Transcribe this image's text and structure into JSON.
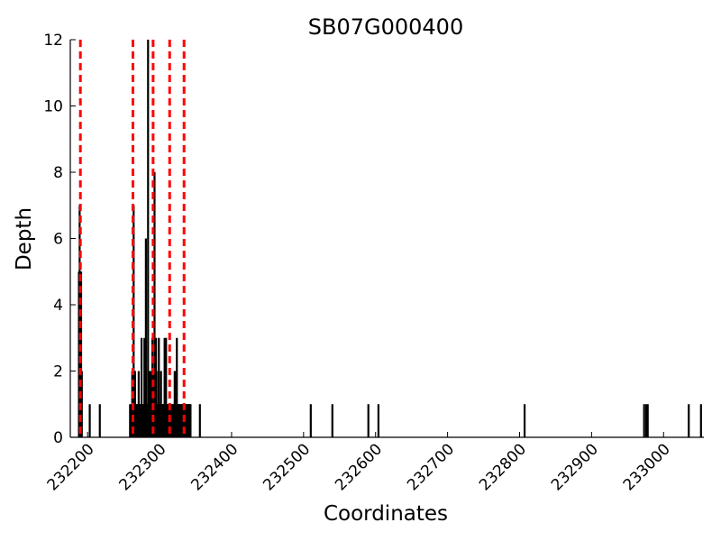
{
  "chart_data": {
    "type": "bar",
    "title": "SB07G000400",
    "xlabel": "Coordinates",
    "ylabel": "Depth",
    "xlim": [
      232176,
      233056
    ],
    "ylim": [
      0,
      12
    ],
    "x_ticks": [
      232200,
      232300,
      232400,
      232500,
      232600,
      232700,
      232800,
      232900,
      233000
    ],
    "x_tick_labels": [
      "232200",
      "232300",
      "232400",
      "232500",
      "232600",
      "232700",
      "232800",
      "232900",
      "233000"
    ],
    "y_ticks": [
      0,
      2,
      4,
      6,
      8,
      10,
      12
    ],
    "y_tick_labels": [
      "0",
      "2",
      "4",
      "6",
      "8",
      "10",
      "12"
    ],
    "grid": false,
    "series": [
      {
        "bar_color": "#000000",
        "x": [
          232188,
          232189,
          232190,
          232191,
          232192,
          232203,
          232217,
          232259,
          232261,
          232262,
          232263,
          232264,
          232265,
          232266,
          232267,
          232268,
          232269,
          232271,
          232272,
          232274,
          232275,
          232276,
          232278,
          232279,
          232280,
          232281,
          232282,
          232283,
          232284,
          232285,
          232286,
          232287,
          232288,
          232289,
          232290,
          232291,
          232292,
          232293,
          232294,
          232295,
          232296,
          232297,
          232298,
          232299,
          232300,
          232301,
          232302,
          232303,
          232304,
          232305,
          232306,
          232307,
          232308,
          232309,
          232310,
          232311,
          232312,
          232313,
          232314,
          232315,
          232316,
          232317,
          232318,
          232319,
          232320,
          232321,
          232322,
          232323,
          232324,
          232325,
          232326,
          232327,
          232328,
          232329,
          232330,
          232331,
          232332,
          232333,
          232334,
          232335,
          232336,
          232337,
          232338,
          232339,
          232340,
          232341,
          232342,
          232343,
          232356,
          232510,
          232540,
          232590,
          232604,
          232807,
          232973,
          232976,
          232978,
          233035,
          233052
        ],
        "values": [
          5,
          7,
          5,
          5,
          2,
          1,
          1,
          1,
          1,
          2,
          2,
          7,
          1,
          2,
          1,
          1,
          1,
          2,
          1,
          1,
          3,
          1,
          1,
          3,
          2,
          6,
          1,
          1,
          12,
          2,
          2,
          1,
          2,
          2,
          3,
          1,
          2,
          8,
          2,
          3,
          1,
          1,
          2,
          3,
          1,
          1,
          2,
          1,
          1,
          1,
          1,
          3,
          2,
          3,
          1,
          1,
          1,
          1,
          1,
          1,
          1,
          1,
          1,
          1,
          1,
          2,
          1,
          2,
          3,
          1,
          1,
          1,
          1,
          1,
          1,
          1,
          1,
          1,
          1,
          1,
          1,
          1,
          1,
          1,
          1,
          1,
          1,
          1,
          1,
          1,
          1,
          1,
          1,
          1,
          1,
          1,
          1,
          1,
          1
        ]
      }
    ],
    "reference_lines": {
      "color": "#ff0000",
      "style": "dashed",
      "x": [
        232190,
        232263,
        232291,
        232314,
        232334
      ]
    }
  }
}
